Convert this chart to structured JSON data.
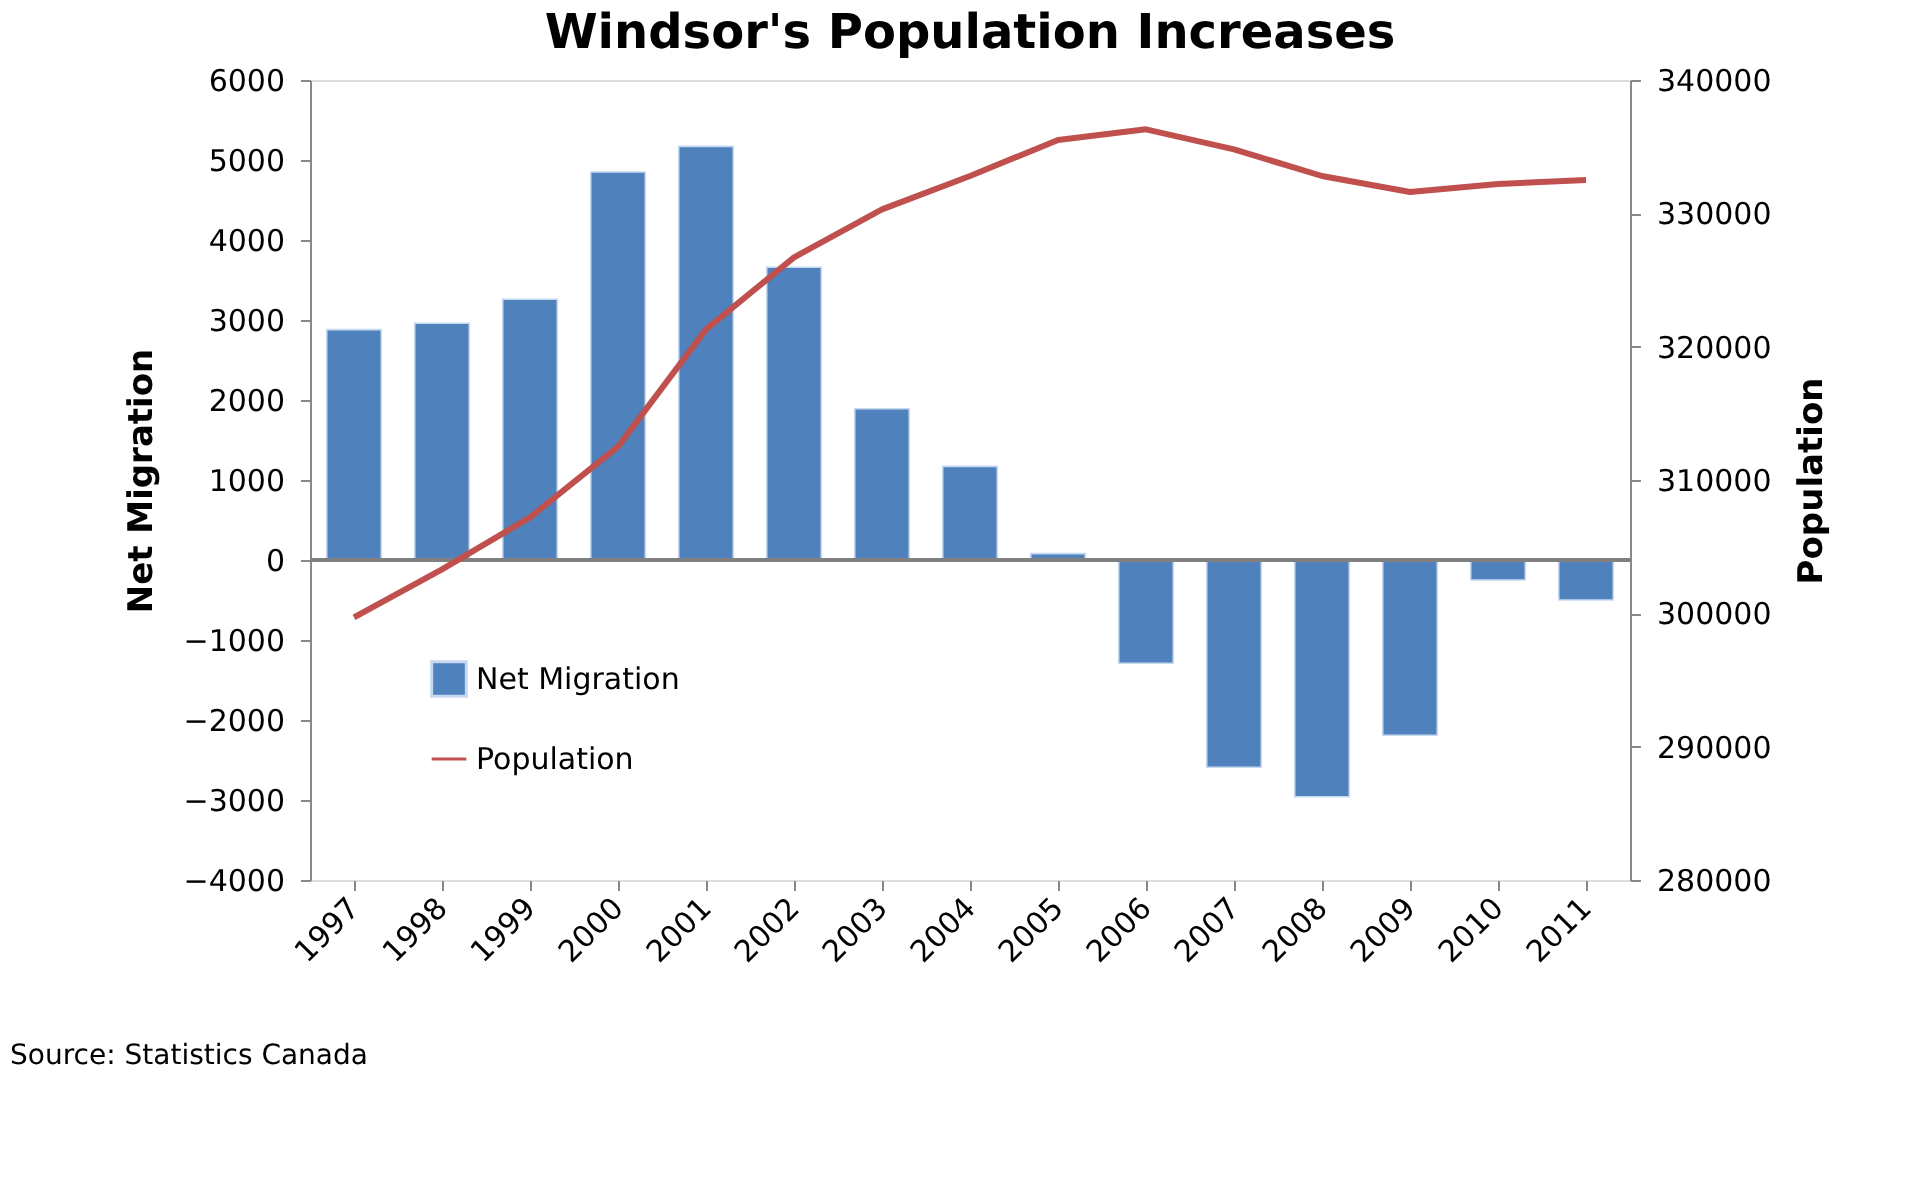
{
  "chart_data": {
    "type": "bar",
    "title": "Windsor's Population Increases",
    "categories": [
      "1997",
      "1998",
      "1999",
      "2000",
      "2001",
      "2002",
      "2003",
      "2004",
      "2005",
      "2006",
      "2007",
      "2008",
      "2009",
      "2010",
      "2011"
    ],
    "series": [
      {
        "name": "Net Migration",
        "color": "#4f81bd",
        "values": [
          2880,
          2960,
          3260,
          4850,
          5170,
          3660,
          1890,
          1170,
          80,
          -1290,
          -2590,
          -2960,
          -2190,
          -250,
          -500
        ]
      },
      {
        "name": "Population",
        "type": "line",
        "axis": "y2",
        "color": "#c0504d",
        "values": [
          299700,
          303300,
          307200,
          312500,
          321300,
          326700,
          330300,
          332800,
          335500,
          336300,
          334800,
          332800,
          331600,
          332200,
          332500
        ]
      }
    ],
    "ylabel": "Net Migration",
    "y2label": "Population",
    "ylim": [
      -4000,
      6000
    ],
    "yticks": [
      -4000,
      -3000,
      -2000,
      -1000,
      0,
      1000,
      2000,
      3000,
      4000,
      5000,
      6000
    ],
    "y2lim": [
      280000,
      340000
    ],
    "y2ticks": [
      280000,
      290000,
      300000,
      310000,
      320000,
      330000,
      340000
    ],
    "grid": false,
    "ref_lines": [
      {
        "axis": "y",
        "value": 0,
        "color": "#808080"
      }
    ],
    "legend": "bottom left",
    "marker": "none",
    "line_style": "solid",
    "annotations": [
      "Source: Statistics Canada"
    ]
  }
}
